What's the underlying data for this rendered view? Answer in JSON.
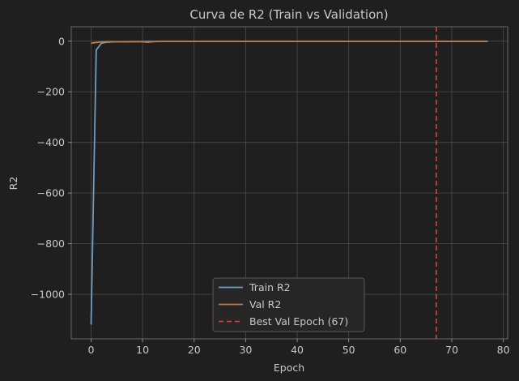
{
  "chart_data": {
    "type": "line",
    "title": "Curva de R2 (Train vs Validation)",
    "xlabel": "Epoch",
    "ylabel": "R2",
    "xlim": [
      -3.85,
      80.85
    ],
    "ylim": [
      -1176,
      57
    ],
    "xticks": [
      0,
      10,
      20,
      30,
      40,
      50,
      60,
      70,
      80
    ],
    "xtick_labels": [
      "0",
      "10",
      "20",
      "30",
      "40",
      "50",
      "60",
      "70",
      "80"
    ],
    "yticks": [
      0,
      -200,
      -400,
      -600,
      -800,
      -1000
    ],
    "ytick_labels": [
      "0",
      "−200",
      "−400",
      "−600",
      "−800",
      "−1000"
    ],
    "grid": true,
    "legend_position": "lower-center",
    "best_epoch": 67,
    "best_line_label": "Best Val Epoch (67)",
    "series": [
      {
        "name": "Train R2",
        "color": "#6f9cc0",
        "x": [
          0,
          1,
          2,
          3,
          4,
          5,
          6,
          7,
          8,
          9,
          10,
          11,
          12,
          13,
          14,
          15,
          16,
          17,
          18,
          19,
          20,
          21,
          22,
          23,
          24,
          25,
          26,
          27,
          28,
          29,
          30,
          31,
          32,
          33,
          34,
          35,
          36,
          37,
          38,
          39,
          40,
          41,
          42,
          43,
          44,
          45,
          46,
          47,
          48,
          49,
          50,
          51,
          52,
          53,
          54,
          55,
          56,
          57,
          58,
          59,
          60,
          61,
          62,
          63,
          64,
          65,
          66,
          67,
          68,
          69,
          70,
          71,
          72,
          73,
          74,
          75,
          76,
          77
        ],
        "y": [
          -1120,
          -35,
          -8,
          -4,
          -3,
          -2,
          -2,
          -2,
          -1.5,
          -1.5,
          -1.5,
          -1,
          -1,
          -1,
          -1,
          -1,
          -1,
          -1,
          -1,
          -1,
          -1,
          -1,
          -1,
          -1,
          -1,
          -1,
          -1,
          -1,
          -1,
          -1,
          -1,
          -1,
          -1,
          -1,
          -1,
          -1,
          -1,
          -1,
          -1,
          -1,
          -1,
          -1,
          -1,
          -1,
          -1,
          -1,
          -1,
          -1,
          -1,
          -1,
          -1,
          -1,
          -1,
          -1,
          -1,
          -1,
          -1,
          -1,
          -1,
          -1,
          -1,
          -1,
          -1,
          -1,
          -1,
          -1,
          -1,
          -1,
          -1,
          -1,
          -1,
          -1,
          -1,
          -1,
          -1,
          -1,
          -1,
          -1
        ]
      },
      {
        "name": "Val R2",
        "color": "#c07a40",
        "x": [
          0,
          1,
          2,
          3,
          4,
          5,
          6,
          7,
          8,
          9,
          10,
          11,
          12,
          13,
          14,
          15,
          16,
          17,
          18,
          19,
          20,
          21,
          22,
          23,
          24,
          25,
          26,
          27,
          28,
          29,
          30,
          31,
          32,
          33,
          34,
          35,
          36,
          37,
          38,
          39,
          40,
          41,
          42,
          43,
          44,
          45,
          46,
          47,
          48,
          49,
          50,
          51,
          52,
          53,
          54,
          55,
          56,
          57,
          58,
          59,
          60,
          61,
          62,
          63,
          64,
          65,
          66,
          67,
          68,
          69,
          70,
          71,
          72,
          73,
          74,
          75,
          76,
          77
        ],
        "y": [
          -8,
          -5,
          -3,
          -2,
          -2,
          -2,
          -2,
          -2,
          -2,
          -2,
          -2,
          -4,
          -2,
          -1,
          -1,
          -1,
          -1,
          -1,
          -1,
          -1,
          -1,
          -1,
          -1,
          -1,
          -1,
          -1,
          -1,
          -1,
          -1,
          -1,
          -1,
          -1,
          -1,
          -1,
          -1,
          -1,
          -1,
          -1,
          -1,
          -1,
          -1,
          -1,
          -1,
          -1,
          -1,
          -1,
          -1,
          -1,
          -1,
          -1,
          -1,
          -1,
          -1,
          -1,
          -1,
          -1,
          -1,
          -1,
          -1,
          -1,
          -1,
          -1,
          -1,
          -1,
          -1,
          -1,
          -1,
          -1,
          -1,
          -1,
          -1,
          -1,
          -1,
          -1,
          -1,
          -1,
          -1,
          -1
        ]
      }
    ],
    "best_line_color": "#c84a4a",
    "background": "#1f1f1f",
    "axes_color": "#555555",
    "grid_color": "#4a4a4a",
    "text_color": "#c8c8c8"
  }
}
